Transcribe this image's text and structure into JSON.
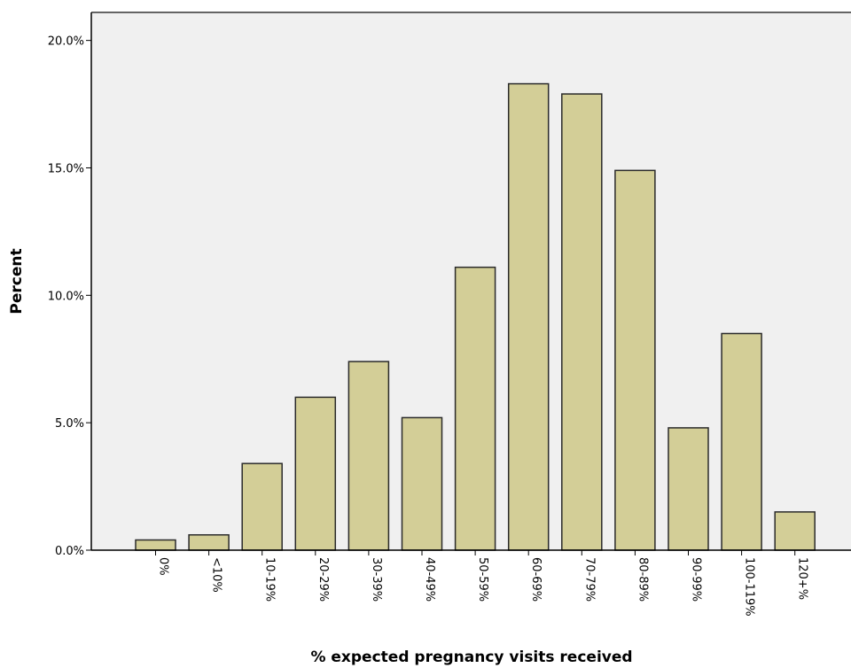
{
  "chart_data": {
    "type": "bar",
    "xlabel": "% expected pregnancy visits received",
    "ylabel": "Percent",
    "categories": [
      "0%",
      "<10%",
      "10-19%",
      "20-29%",
      "30-39%",
      "40-49%",
      "50-59%",
      "60-69%",
      "70-79%",
      "80-89%",
      "90-99%",
      "100-119%",
      "120+%"
    ],
    "values": [
      0.4,
      0.6,
      3.4,
      6.0,
      7.4,
      5.2,
      11.1,
      18.3,
      17.9,
      14.9,
      4.8,
      8.5,
      1.5
    ],
    "ylim": [
      0,
      21.1
    ],
    "yticks": [
      0,
      5,
      10,
      15,
      20
    ],
    "ytick_labels": [
      "0.0%",
      "5.0%",
      "10.0%",
      "15.0%",
      "20.0%"
    ],
    "grid": false,
    "colors": {
      "bar_fill": "#d3ce97",
      "bar_stroke": "#2a2a2a",
      "plot_background": "#f0f0f0",
      "axis": "#000000"
    }
  }
}
